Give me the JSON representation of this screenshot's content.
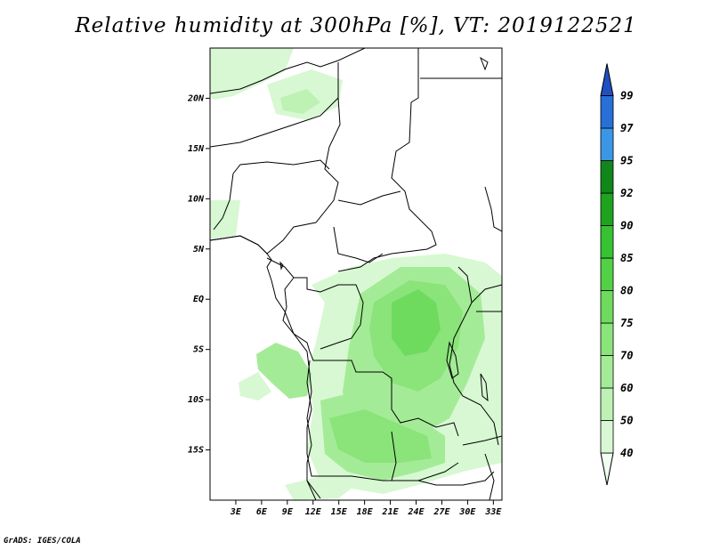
{
  "title": "Relative humidity at 300hPa [%], VT: 2019122521",
  "credit": "GrADS: IGES/COLA",
  "chart_data": {
    "type": "heatmap",
    "variable": "Relative humidity at 300hPa",
    "units": "%",
    "valid_time": "2019122521",
    "lon_range": [
      0,
      34
    ],
    "lat_range": [
      -20,
      25
    ],
    "x_ticks": [
      "3E",
      "6E",
      "9E",
      "12E",
      "15E",
      "18E",
      "21E",
      "24E",
      "27E",
      "30E",
      "33E"
    ],
    "y_ticks": [
      "20N",
      "15N",
      "10N",
      "5N",
      "EQ",
      "5S",
      "10S",
      "15S"
    ],
    "colorbar": {
      "levels": [
        "40",
        "50",
        "60",
        "70",
        "75",
        "80",
        "85",
        "90",
        "92",
        "95",
        "97",
        "99"
      ],
      "colors": [
        "#f0fff0",
        "#d7f8d2",
        "#bdf2b4",
        "#a4eb97",
        "#8ae479",
        "#6edb5e",
        "#52d146",
        "#36c232",
        "#1fa31f",
        "#11871b",
        "#3c96e6",
        "#2670d8",
        "#1f4fc0"
      ]
    }
  }
}
